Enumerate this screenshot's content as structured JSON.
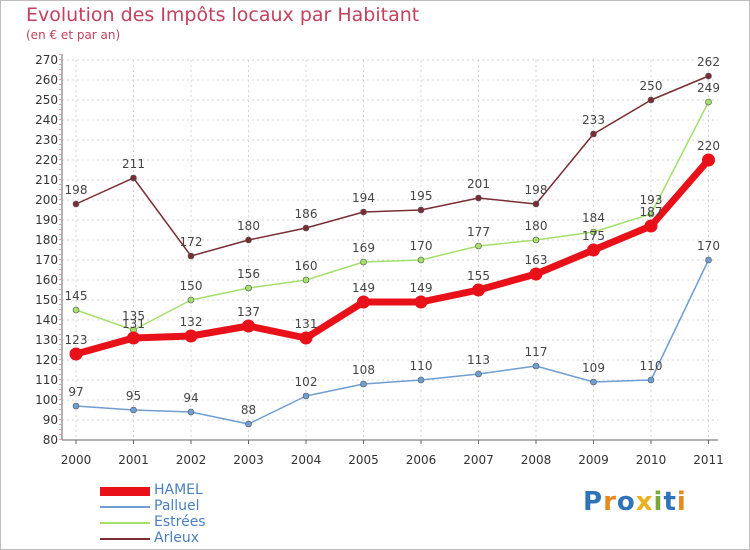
{
  "title": "Evolution des Impôts locaux par Habitant",
  "subtitle": "(en € et par an)",
  "logo": {
    "text": "Proxiti",
    "letter_colors": [
      "#2f74b9",
      "#e48a1f",
      "#2f74b9",
      "#e8b21c",
      "#7aa83a",
      "#2f74b9",
      "#e48a1f"
    ]
  },
  "chart_data": {
    "type": "line",
    "categories": [
      "2000",
      "2001",
      "2002",
      "2003",
      "2004",
      "2005",
      "2006",
      "2007",
      "2008",
      "2009",
      "2010",
      "2011"
    ],
    "ylim": [
      80,
      270
    ],
    "yticks": [
      80,
      90,
      100,
      110,
      120,
      130,
      140,
      150,
      160,
      170,
      180,
      190,
      200,
      210,
      220,
      230,
      240,
      250,
      260,
      270
    ],
    "legend_position": "bottom-left",
    "series": [
      {
        "name": "HAMEL",
        "color": "#e8111a",
        "width": 7,
        "marker_r": 6.5,
        "values": [
          123,
          131,
          132,
          137,
          131,
          149,
          149,
          155,
          163,
          175,
          187,
          220
        ],
        "labels": [
          "123",
          "131",
          "132",
          "137",
          "131",
          "149",
          "149",
          "155",
          "163",
          "175",
          "187",
          "220"
        ]
      },
      {
        "name": "Palluel",
        "color": "#6e9ed3",
        "width": 1.5,
        "marker_r": 3,
        "values": [
          97,
          95,
          94,
          88,
          102,
          108,
          110,
          113,
          117,
          109,
          110,
          170
        ],
        "labels": [
          "97",
          "95",
          "94",
          "88",
          "102",
          "108",
          "110",
          "113",
          "117",
          "109",
          "110",
          "170"
        ]
      },
      {
        "name": "Estrées",
        "color": "#a4df6b",
        "width": 1.5,
        "marker_r": 3,
        "values": [
          145,
          135,
          150,
          156,
          160,
          169,
          170,
          177,
          180,
          184,
          193,
          249
        ],
        "labels": [
          "145",
          "135",
          "150",
          "156",
          "160",
          "169",
          "170",
          "177",
          "180",
          "184",
          "193",
          "249"
        ]
      },
      {
        "name": "Arleux",
        "color": "#7a2e34",
        "width": 1.5,
        "marker_r": 3,
        "values": [
          198,
          211,
          172,
          180,
          186,
          194,
          195,
          201,
          198,
          233,
          250,
          262
        ],
        "labels": [
          "198",
          "211",
          "172",
          "180",
          "186",
          "194",
          "195",
          "201",
          "198",
          "233",
          "250",
          "262"
        ]
      }
    ]
  }
}
